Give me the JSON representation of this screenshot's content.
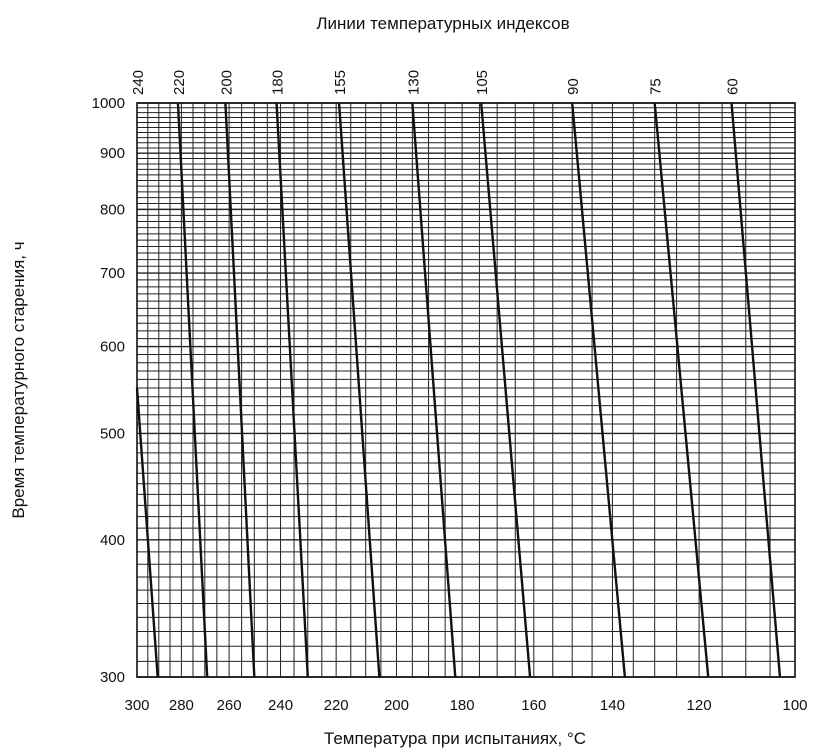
{
  "chart_data": {
    "type": "line",
    "title": "Линии температурных индексов",
    "xlabel": "Температура при испытаниях, °C",
    "ylabel": "Время температурного старения, ч",
    "x_scale": "reciprocal",
    "y_scale": "log",
    "xlim": [
      300,
      100
    ],
    "ylim": [
      300,
      1000
    ],
    "x_ticks": [
      300,
      280,
      260,
      240,
      220,
      200,
      180,
      160,
      140,
      120,
      100
    ],
    "x_tick_labels": [
      "300",
      "280",
      "260",
      "240",
      "220",
      "200",
      "180",
      "160",
      "140",
      "120",
      "100"
    ],
    "y_ticks": [
      300,
      400,
      500,
      600,
      700,
      800,
      900,
      1000
    ],
    "y_tick_labels": [
      "300",
      "400",
      "500",
      "600",
      "700",
      "800",
      "900",
      "1000"
    ],
    "grid": true,
    "legend": "none",
    "line_color": "#111111",
    "grid_color": "#222222",
    "series": [
      {
        "name": "240",
        "x": [
          290.5,
          300
        ],
        "y": [
          300,
          550
        ]
      },
      {
        "name": "220",
        "x": [
          269,
          281.5
        ],
        "y": [
          300,
          1000
        ]
      },
      {
        "name": "200",
        "x": [
          250,
          261.5
        ],
        "y": [
          300,
          1000
        ]
      },
      {
        "name": "180",
        "x": [
          230,
          241.5
        ],
        "y": [
          300,
          1000
        ]
      },
      {
        "name": "155",
        "x": [
          205.5,
          219
        ],
        "y": [
          300,
          1000
        ]
      },
      {
        "name": "130",
        "x": [
          182,
          195
        ],
        "y": [
          300,
          1000
        ]
      },
      {
        "name": "105",
        "x": [
          161,
          174.5
        ],
        "y": [
          300,
          1000
        ]
      },
      {
        "name": "90",
        "x": [
          137,
          150
        ],
        "y": [
          300,
          1000
        ]
      },
      {
        "name": "75",
        "x": [
          118,
          130
        ],
        "y": [
          300,
          1000
        ]
      },
      {
        "name": "60",
        "x": [
          103,
          113
        ],
        "y": [
          300,
          1000
        ]
      }
    ],
    "index_labels": [
      "240",
      "220",
      "200",
      "180",
      "155",
      "130",
      "105",
      "90",
      "75",
      "60"
    ]
  }
}
